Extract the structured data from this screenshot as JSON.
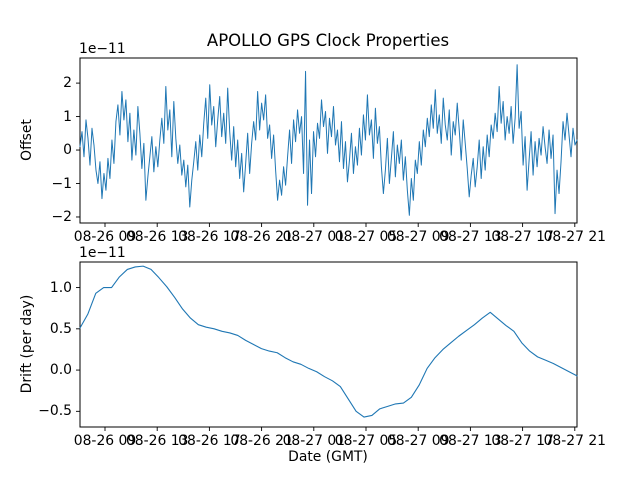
{
  "style": {
    "line_color": "#1f77b4",
    "axis_color": "#000000",
    "background": "#ffffff",
    "text_color": "#000000"
  },
  "chart_data": [
    {
      "type": "line",
      "title": "APOLLO GPS Clock Properties",
      "ylabel": "Offset",
      "scale_label": "1e−11",
      "grid": false,
      "legend_position": "none",
      "ylim": [
        -2.18,
        2.75
      ],
      "y_ticks": [
        {
          "value": 2,
          "label": "2"
        },
        {
          "value": 1,
          "label": "1"
        },
        {
          "value": 0,
          "label": "0"
        },
        {
          "value": -1,
          "label": "−1"
        },
        {
          "value": -2,
          "label": "−2"
        }
      ],
      "x_tick_labels": [
        "08-26 09",
        "08-26 13",
        "08-26 17",
        "08-26 21",
        "08-27 01",
        "08-27 05",
        "08-27 09",
        "08-27 13",
        "08-27 17",
        "08-27 21"
      ],
      "x_tick_frac_start": 0.0503,
      "x_tick_frac_step": 0.10503,
      "values": [
        0.1,
        0.55,
        -0.2,
        0.9,
        0.35,
        -0.45,
        0.65,
        0.15,
        -0.6,
        -1.0,
        -0.35,
        -1.45,
        -0.7,
        -1.2,
        -0.25,
        -0.85,
        0.3,
        -0.4,
        0.85,
        1.35,
        0.45,
        1.75,
        0.9,
        1.5,
        0.25,
        1.1,
        -0.3,
        0.6,
        -0.15,
        1.3,
        0.5,
        -0.55,
        0.2,
        -1.5,
        -0.8,
        -0.2,
        0.4,
        -0.65,
        0.1,
        -0.5,
        0.3,
        0.95,
        0.2,
        1.9,
        0.6,
        1.2,
        -0.2,
        1.45,
        0.35,
        -0.4,
        0.15,
        -0.75,
        -0.3,
        -1.1,
        -0.45,
        -1.7,
        -0.9,
        -0.35,
        0.25,
        -0.6,
        0.45,
        -0.2,
        0.8,
        1.55,
        0.35,
        1.95,
        0.75,
        1.3,
        0.1,
        0.9,
        1.6,
        0.4,
        1.1,
        0.2,
        1.85,
        0.55,
        -0.3,
        0.7,
        -0.5,
        0.3,
        -0.85,
        -0.1,
        -1.25,
        -0.4,
        0.5,
        -0.7,
        0.2,
        0.85,
        0.3,
        1.75,
        0.6,
        1.4,
        0.9,
        1.65,
        0.35,
        0.75,
        -0.25,
        0.45,
        -0.6,
        -1.5,
        -0.9,
        -1.35,
        -0.5,
        -1.05,
        -0.2,
        0.6,
        -0.4,
        0.9,
        0.25,
        1.2,
        0.5,
        1.0,
        -0.7,
        2.35,
        -1.65,
        0.3,
        -1.3,
        0.55,
        -0.2,
        0.8,
        0.35,
        1.5,
        0.7,
        1.15,
        -0.1,
        0.95,
        0.4,
        1.3,
        0.15,
        0.6,
        -0.35,
        0.85,
        -0.55,
        0.25,
        -0.95,
        -0.3,
        0.5,
        -0.7,
        0.1,
        -0.45,
        0.65,
        -0.15,
        1.05,
        0.3,
        1.65,
        0.45,
        0.9,
        -0.25,
        1.25,
        0.2,
        0.7,
        -0.5,
        -1.3,
        -0.6,
        0.35,
        -1.0,
        -0.25,
        0.55,
        -0.8,
        0.15,
        -0.4,
        0.3,
        -0.9,
        -0.2,
        -1.2,
        -1.95,
        -0.85,
        -1.5,
        -0.3,
        -0.7,
        0.25,
        -0.45,
        0.6,
        0.1,
        0.95,
        0.4,
        1.35,
        0.65,
        1.8,
        0.5,
        1.05,
        0.2,
        1.55,
        0.75,
        0.3,
        1.2,
        -0.15,
        0.85,
        0.45,
        1.4,
        0.6,
        -0.3,
        0.9,
        0.2,
        -0.55,
        -1.4,
        -0.75,
        -0.25,
        -1.1,
        -0.5,
        0.3,
        -0.85,
        0.1,
        -0.6,
        0.45,
        -0.2,
        0.75,
        0.35,
        1.1,
        0.55,
        1.9,
        0.8,
        1.45,
        0.3,
        1.0,
        0.5,
        1.3,
        0.2,
        0.95,
        2.55,
        0.65,
        1.15,
        -0.45,
        0.4,
        -1.2,
        -0.3,
        0.55,
        -0.75,
        0.25,
        -0.5,
        0.35,
        -0.15,
        0.7,
        0.1,
        -0.4,
        0.6,
        -0.25,
        0.45,
        -1.9,
        -0.6,
        -1.3,
        -0.35,
        0.85,
        0.3,
        1.1,
        0.45,
        -0.2,
        0.65,
        0.15,
        0.3
      ]
    },
    {
      "type": "line",
      "title": "",
      "ylabel": "Drift (per day)",
      "xlabel": "Date (GMT)",
      "scale_label": "1e−11",
      "grid": false,
      "legend_position": "none",
      "ylim": [
        -0.69,
        1.31
      ],
      "y_ticks": [
        {
          "value": 1.0,
          "label": "1.0"
        },
        {
          "value": 0.5,
          "label": "0.5"
        },
        {
          "value": 0.0,
          "label": "0.0"
        },
        {
          "value": -0.5,
          "label": "−0.5"
        }
      ],
      "x_tick_labels": [
        "08-26 09",
        "08-26 13",
        "08-26 17",
        "08-26 21",
        "08-27 01",
        "08-27 05",
        "08-27 09",
        "08-27 13",
        "08-27 17",
        "08-27 21"
      ],
      "x_tick_frac_start": 0.0503,
      "x_tick_frac_step": 0.10503,
      "values": [
        0.51,
        0.68,
        0.93,
        1.0,
        1.0,
        1.13,
        1.22,
        1.25,
        1.26,
        1.22,
        1.12,
        1.01,
        0.88,
        0.74,
        0.63,
        0.55,
        0.52,
        0.5,
        0.47,
        0.45,
        0.42,
        0.36,
        0.31,
        0.26,
        0.23,
        0.21,
        0.15,
        0.1,
        0.07,
        0.02,
        -0.02,
        -0.08,
        -0.13,
        -0.2,
        -0.35,
        -0.5,
        -0.57,
        -0.55,
        -0.47,
        -0.44,
        -0.41,
        -0.4,
        -0.33,
        -0.18,
        0.02,
        0.15,
        0.25,
        0.33,
        0.41,
        0.48,
        0.55,
        0.63,
        0.7,
        0.62,
        0.54,
        0.47,
        0.33,
        0.23,
        0.16,
        0.12,
        0.08,
        0.03,
        -0.02,
        -0.07
      ]
    }
  ]
}
